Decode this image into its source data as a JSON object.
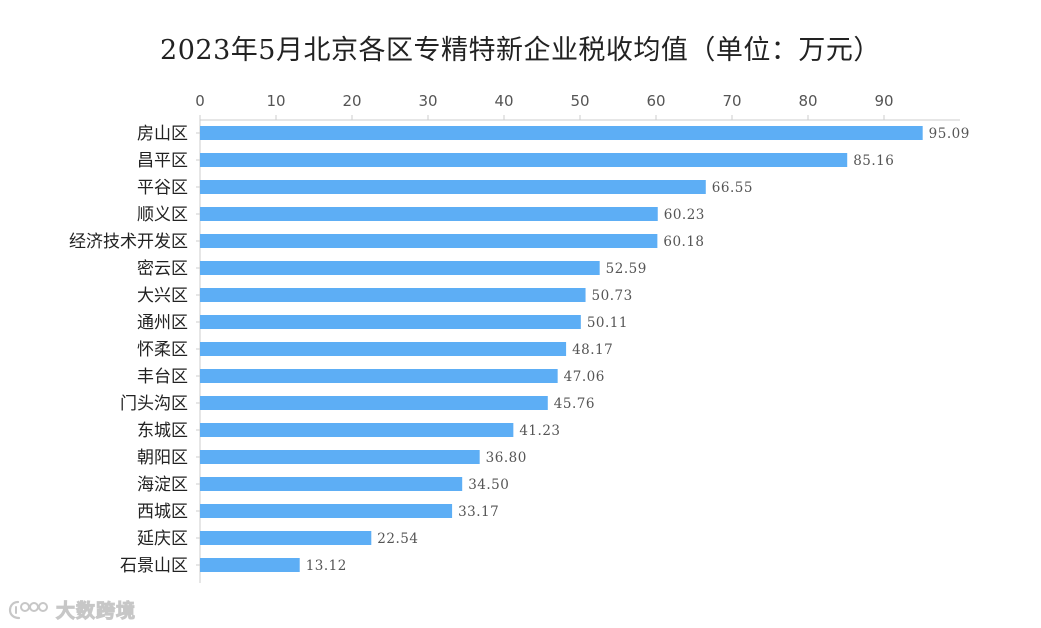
{
  "chart_data": {
    "type": "bar",
    "orientation": "horizontal",
    "title": "2023年5月北京各区专精特新企业税收均值（单位：万元）",
    "categories": [
      "房山区",
      "昌平区",
      "平谷区",
      "顺义区",
      "经济技术开发区",
      "密云区",
      "大兴区",
      "通州区",
      "怀柔区",
      "丰台区",
      "门头沟区",
      "东城区",
      "朝阳区",
      "海淀区",
      "西城区",
      "延庆区",
      "石景山区"
    ],
    "values": [
      95.09,
      85.16,
      66.55,
      60.23,
      60.18,
      52.59,
      50.73,
      50.11,
      48.17,
      47.06,
      45.76,
      41.23,
      36.8,
      34.5,
      33.17,
      22.54,
      13.12
    ],
    "value_labels": [
      "95.09",
      "85.16",
      "66.55",
      "60.23",
      "60.18",
      "52.59",
      "50.73",
      "50.11",
      "48.17",
      "47.06",
      "45.76",
      "41.23",
      "36.80",
      "34.50",
      "33.17",
      "22.54",
      "13.12"
    ],
    "x_ticks": [
      "0",
      "10",
      "20",
      "30",
      "40",
      "50",
      "60",
      "70",
      "80",
      "90"
    ],
    "xlim": [
      0,
      100
    ],
    "axis_position": "top",
    "grid": false,
    "bar_color": "#5daef5"
  },
  "watermark": {
    "text": "大数跨境",
    "icon": "logo-icon"
  }
}
